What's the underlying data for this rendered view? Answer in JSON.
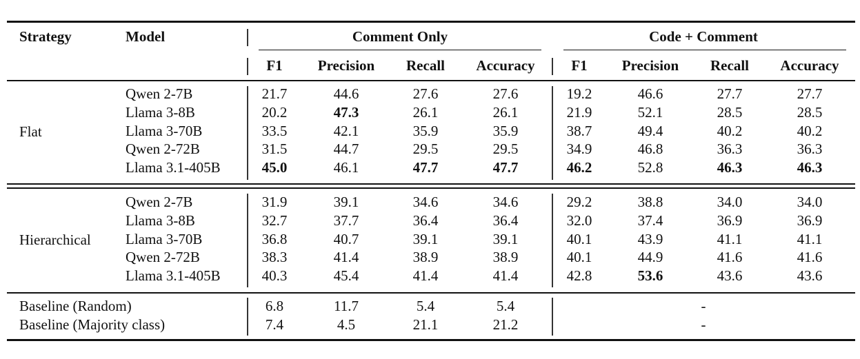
{
  "header": {
    "strategy": "Strategy",
    "model": "Model",
    "group_comment_only": "Comment Only",
    "group_code_comment": "Code + Comment",
    "metrics": [
      "F1",
      "Precision",
      "Recall",
      "Accuracy"
    ]
  },
  "sections": [
    {
      "strategy": "Flat",
      "rows": [
        {
          "model": "Qwen 2-7B",
          "values": [
            "21.7",
            "44.6",
            "27.6",
            "27.6",
            "19.2",
            "46.6",
            "27.7",
            "27.7"
          ],
          "bold": []
        },
        {
          "model": "Llama 3-8B",
          "values": [
            "20.2",
            "47.3",
            "26.1",
            "26.1",
            "21.9",
            "52.1",
            "28.5",
            "28.5"
          ],
          "bold": [
            1
          ]
        },
        {
          "model": "Llama 3-70B",
          "values": [
            "33.5",
            "42.1",
            "35.9",
            "35.9",
            "38.7",
            "49.4",
            "40.2",
            "40.2"
          ],
          "bold": []
        },
        {
          "model": "Qwen 2-72B",
          "values": [
            "31.5",
            "44.7",
            "29.5",
            "29.5",
            "34.9",
            "46.8",
            "36.3",
            "36.3"
          ],
          "bold": []
        },
        {
          "model": "Llama 3.1-405B",
          "values": [
            "45.0",
            "46.1",
            "47.7",
            "47.7",
            "46.2",
            "52.8",
            "46.3",
            "46.3"
          ],
          "bold": [
            0,
            2,
            3,
            4,
            6,
            7
          ]
        }
      ]
    },
    {
      "strategy": "Hierarchical",
      "rows": [
        {
          "model": "Qwen 2-7B",
          "values": [
            "31.9",
            "39.1",
            "34.6",
            "34.6",
            "29.2",
            "38.8",
            "34.0",
            "34.0"
          ],
          "bold": []
        },
        {
          "model": "Llama 3-8B",
          "values": [
            "32.7",
            "37.7",
            "36.4",
            "36.4",
            "32.0",
            "37.4",
            "36.9",
            "36.9"
          ],
          "bold": []
        },
        {
          "model": "Llama 3-70B",
          "values": [
            "36.8",
            "40.7",
            "39.1",
            "39.1",
            "40.1",
            "43.9",
            "41.1",
            "41.1"
          ],
          "bold": []
        },
        {
          "model": "Qwen 2-72B",
          "values": [
            "38.3",
            "41.4",
            "38.9",
            "38.9",
            "40.1",
            "44.9",
            "41.6",
            "41.6"
          ],
          "bold": []
        },
        {
          "model": "Llama 3.1-405B",
          "values": [
            "40.3",
            "45.4",
            "41.4",
            "41.4",
            "42.8",
            "53.6",
            "43.6",
            "43.6"
          ],
          "bold": [
            5
          ]
        }
      ]
    }
  ],
  "baselines": [
    {
      "label": "Baseline (Random)",
      "values": [
        "6.8",
        "11.7",
        "5.4",
        "5.4"
      ],
      "code_comment": "-"
    },
    {
      "label": "Baseline (Majority class)",
      "values": [
        "7.4",
        "4.5",
        "21.1",
        "21.2"
      ],
      "code_comment": "-"
    }
  ]
}
